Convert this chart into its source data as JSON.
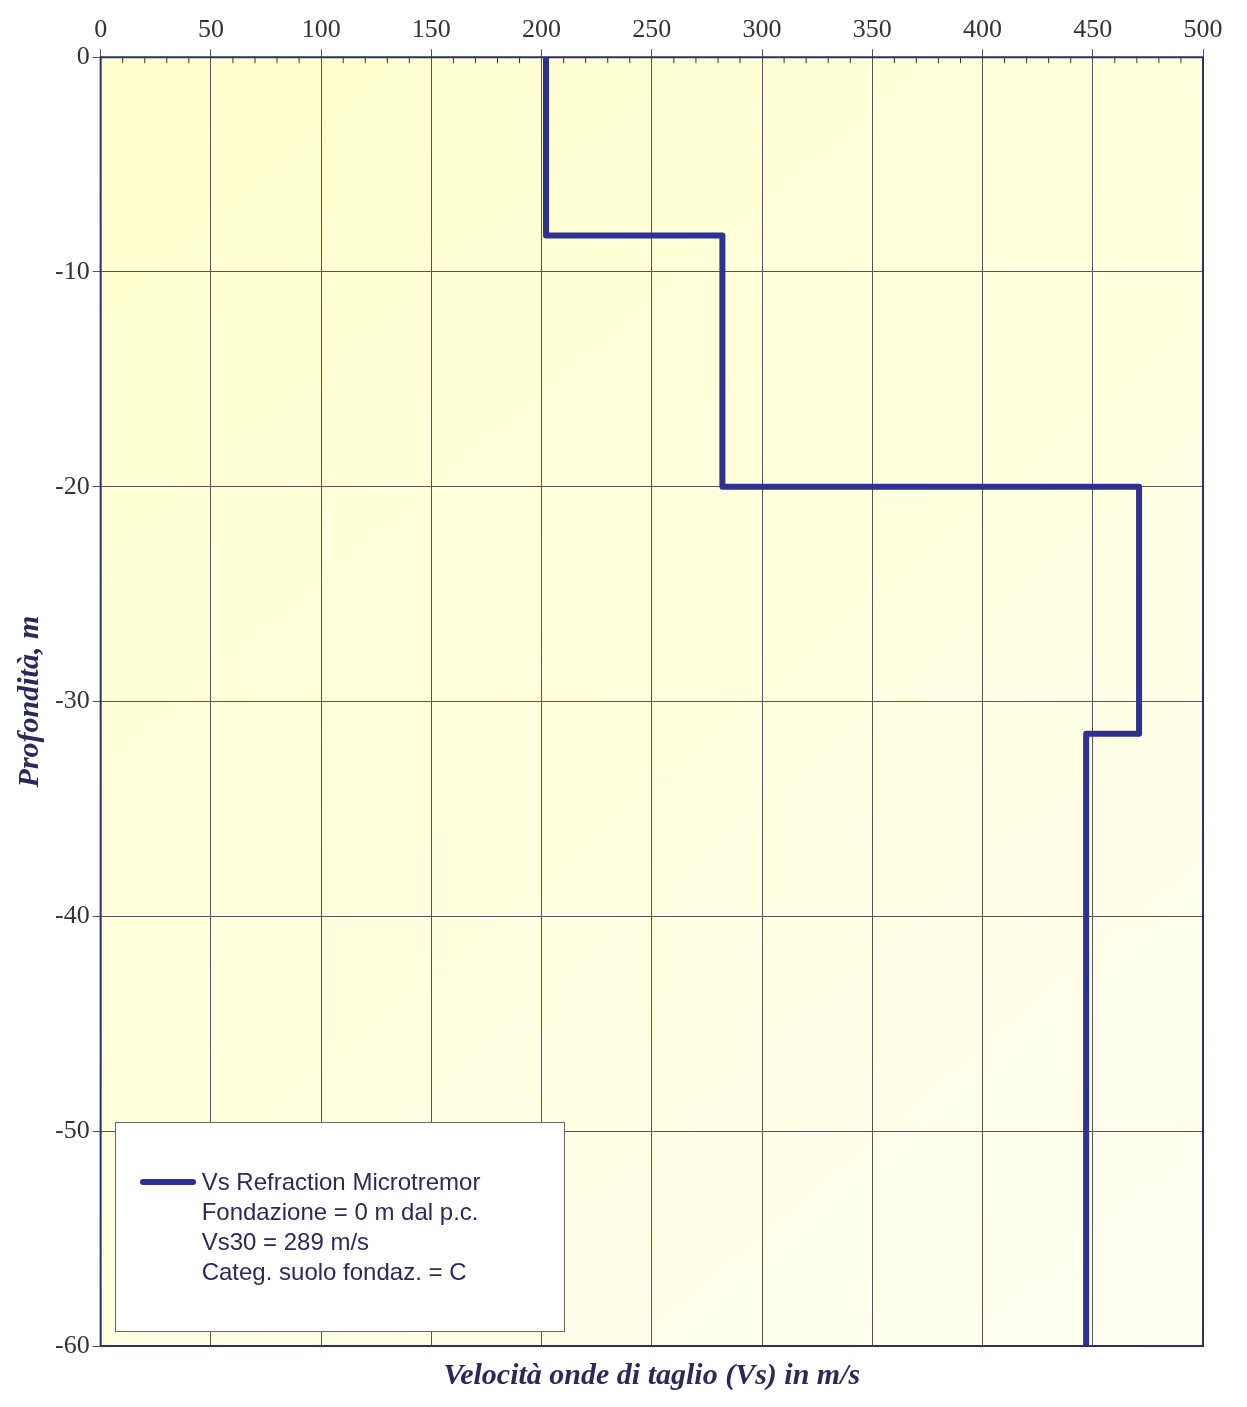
{
  "chart_data": {
    "type": "line",
    "xlabel": "Velocità onde di taglio (Vs) in m/s",
    "ylabel": "Profondità, m",
    "series": [
      {
        "name": "Vs Refraction Microtremor",
        "color": "#2e3192",
        "x": [
          202,
          202,
          282,
          282,
          471,
          471,
          447,
          447
        ],
        "values": [
          0,
          -8.3,
          -8.3,
          -20,
          -20,
          -31.5,
          -31.5,
          -60
        ]
      }
    ],
    "xlim": [
      0,
      500
    ],
    "xticks": [
      0,
      50,
      100,
      150,
      200,
      250,
      300,
      350,
      400,
      450,
      500
    ],
    "ylim": [
      -60,
      0
    ],
    "yticks": [
      -60,
      -50,
      -40,
      -30,
      -20,
      -10,
      0
    ],
    "grid": true,
    "legend": "bottom left",
    "marker": "none",
    "line_style": "solid",
    "annotations": [
      "Fondazione = 0 m dal p.c.",
      "Vs30 = 289 m/s",
      "Categ. suolo fondaz. = C"
    ]
  }
}
